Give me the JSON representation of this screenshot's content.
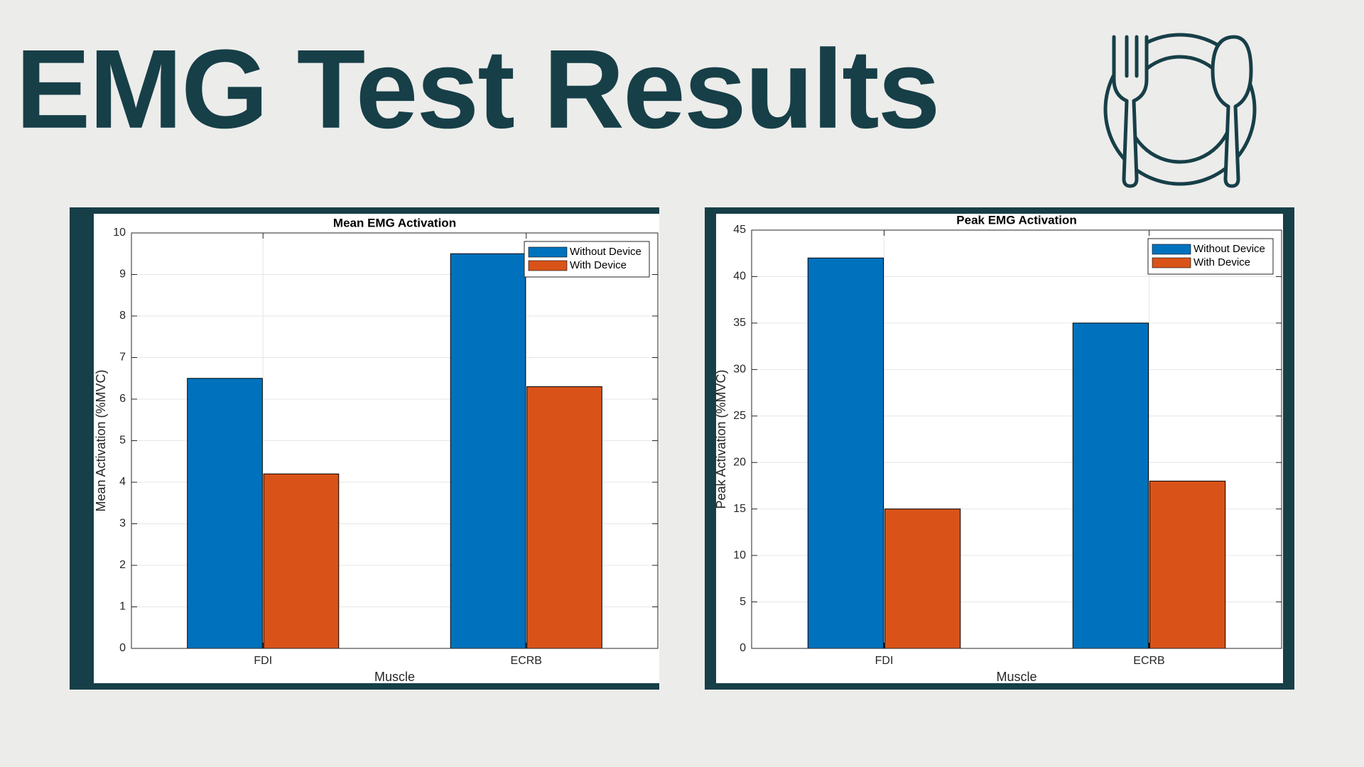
{
  "title": "EMG Test Results",
  "chart_data": [
    {
      "type": "bar",
      "title": "Mean EMG Activation",
      "x_label": "Muscle",
      "y_label": "Mean Activation (%MVC)",
      "categories": [
        "FDI",
        "ECRB"
      ],
      "series": [
        {
          "name": "Without Device",
          "color": "#0072bd",
          "values": [
            6.5,
            9.5
          ]
        },
        {
          "name": "With Device",
          "color": "#d95319",
          "values": [
            4.2,
            6.3
          ]
        }
      ],
      "ylim": [
        0,
        10
      ],
      "yticks": [
        0,
        1,
        2,
        3,
        4,
        5,
        6,
        7,
        8,
        9,
        10
      ],
      "grid": true,
      "legend": "northeast"
    },
    {
      "type": "bar",
      "title": "Peak EMG Activation",
      "x_label": "Muscle",
      "y_label": "Peak Activation (%MVC)",
      "categories": [
        "FDI",
        "ECRB"
      ],
      "series": [
        {
          "name": "Without Device",
          "color": "#0072bd",
          "values": [
            42,
            35
          ]
        },
        {
          "name": "With Device",
          "color": "#d95319",
          "values": [
            15,
            18
          ]
        }
      ],
      "ylim": [
        0,
        45
      ],
      "yticks": [
        0,
        5,
        10,
        15,
        20,
        25,
        30,
        35,
        40,
        45
      ],
      "grid": true,
      "legend": "northeast"
    }
  ]
}
